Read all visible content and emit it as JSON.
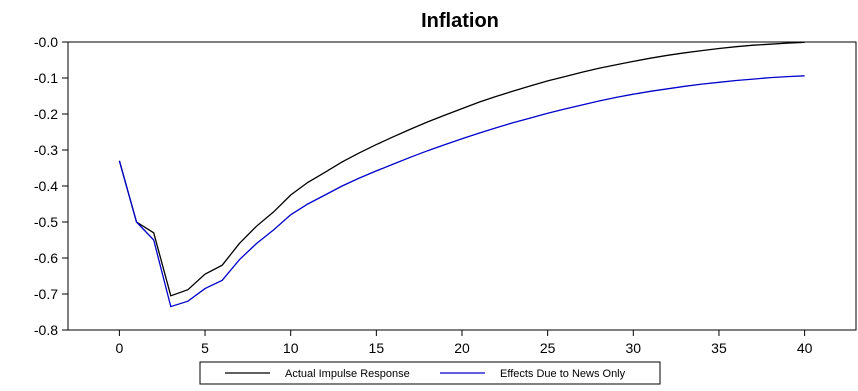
{
  "chart_data": {
    "type": "line",
    "title": "Inflation",
    "xlabel": "",
    "ylabel": "",
    "xlim": [
      -3,
      43
    ],
    "ylim": [
      -0.8,
      0.0
    ],
    "xticks": [
      0,
      5,
      10,
      15,
      20,
      25,
      30,
      35,
      40
    ],
    "xtick_labels": [
      "0",
      "5",
      "10",
      "15",
      "20",
      "25",
      "30",
      "35",
      "40"
    ],
    "yticks": [
      0.0,
      -0.1,
      -0.2,
      -0.3,
      -0.4,
      -0.5,
      -0.6,
      -0.7,
      -0.8
    ],
    "ytick_labels": [
      "-0.0",
      "-0.1",
      "-0.2",
      "-0.3",
      "-0.4",
      "-0.5",
      "-0.6",
      "-0.7",
      "-0.8"
    ],
    "grid": false,
    "legend_position": "bottom",
    "x": [
      0,
      1,
      2,
      3,
      4,
      5,
      6,
      7,
      8,
      9,
      10,
      11,
      12,
      13,
      14,
      15,
      16,
      17,
      18,
      19,
      20,
      21,
      22,
      23,
      24,
      25,
      26,
      27,
      28,
      29,
      30,
      31,
      32,
      33,
      34,
      35,
      36,
      37,
      38,
      39,
      40
    ],
    "series": [
      {
        "name": "Actual Impulse Response",
        "color": "#000000",
        "values": [
          -0.33,
          -0.5,
          -0.53,
          -0.705,
          -0.688,
          -0.645,
          -0.62,
          -0.56,
          -0.512,
          -0.472,
          -0.425,
          -0.39,
          -0.362,
          -0.333,
          -0.308,
          -0.285,
          -0.263,
          -0.242,
          -0.222,
          -0.203,
          -0.185,
          -0.167,
          -0.151,
          -0.136,
          -0.122,
          -0.108,
          -0.096,
          -0.084,
          -0.073,
          -0.063,
          -0.054,
          -0.045,
          -0.037,
          -0.03,
          -0.024,
          -0.018,
          -0.013,
          -0.009,
          -0.006,
          -0.003,
          -0.001
        ]
      },
      {
        "name": "Effects Due to News Only",
        "color": "#0000cc",
        "values": [
          -0.33,
          -0.5,
          -0.55,
          -0.735,
          -0.72,
          -0.685,
          -0.662,
          -0.605,
          -0.56,
          -0.522,
          -0.48,
          -0.45,
          -0.425,
          -0.4,
          -0.378,
          -0.358,
          -0.339,
          -0.32,
          -0.302,
          -0.285,
          -0.269,
          -0.253,
          -0.238,
          -0.224,
          -0.211,
          -0.198,
          -0.186,
          -0.175,
          -0.164,
          -0.154,
          -0.145,
          -0.137,
          -0.13,
          -0.123,
          -0.117,
          -0.112,
          -0.107,
          -0.103,
          -0.099,
          -0.096,
          -0.094
        ]
      }
    ]
  }
}
